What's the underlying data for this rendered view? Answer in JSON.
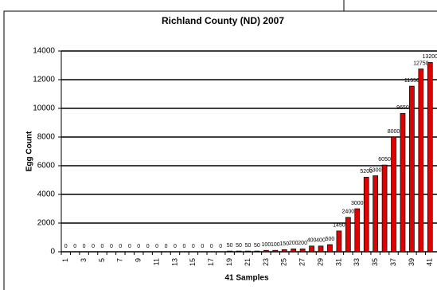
{
  "chart_data": {
    "type": "bar",
    "title": "Richland County (ND) 2007",
    "x_label": "41 Samples",
    "y_label": "Egg Count",
    "categories": [
      "1",
      null,
      "3",
      null,
      "5",
      null,
      "7",
      null,
      "9",
      null,
      "11",
      null,
      "13",
      null,
      "15",
      null,
      "17",
      null,
      "19",
      null,
      "21",
      null,
      "23",
      null,
      "25",
      null,
      "27",
      null,
      "29",
      null,
      "31",
      null,
      "33",
      null,
      "35",
      null,
      "37",
      null,
      "39",
      null,
      "41"
    ],
    "values": [
      0,
      0,
      0,
      0,
      0,
      0,
      0,
      0,
      0,
      0,
      0,
      0,
      0,
      0,
      0,
      0,
      0,
      0,
      50,
      50,
      50,
      50,
      100,
      100,
      150,
      200,
      200,
      400,
      400,
      500,
      1450,
      2400,
      3000,
      5200,
      5300,
      6050,
      8000,
      9650,
      11550,
      12750,
      13200
    ],
    "color": "#e00000",
    "ylim": [
      0,
      14000
    ],
    "yticks": [
      0,
      2000,
      4000,
      6000,
      8000,
      10000,
      12000,
      14000
    ],
    "grid": true
  }
}
